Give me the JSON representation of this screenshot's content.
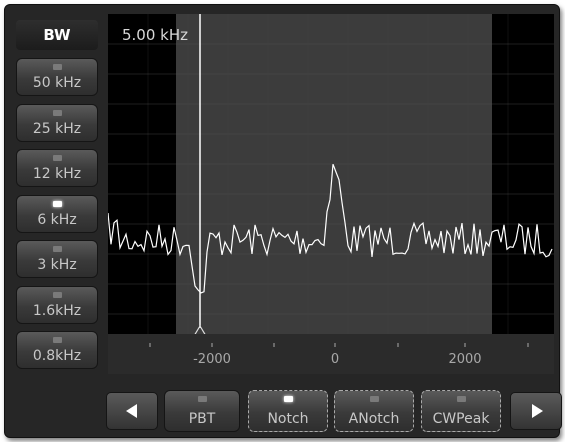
{
  "bw_panel": {
    "title": "BW",
    "buttons": [
      {
        "label": "50 kHz",
        "selected": false
      },
      {
        "label": "25 kHz",
        "selected": false
      },
      {
        "label": "12 kHz",
        "selected": false
      },
      {
        "label": "6 kHz",
        "selected": true
      },
      {
        "label": "3 kHz",
        "selected": false
      },
      {
        "label": "1.6kHz",
        "selected": false
      },
      {
        "label": "0.8kHz",
        "selected": false
      }
    ]
  },
  "display": {
    "bandwidth_label": "5.00 kHz",
    "axis_labels": [
      "-2000",
      "0",
      "2000"
    ]
  },
  "toolbar": {
    "buttons": [
      {
        "label": "PBT",
        "active": false
      },
      {
        "label": "Notch",
        "active": true
      },
      {
        "label": "ANotch",
        "active": false
      },
      {
        "label": "CWPeak",
        "active": false
      }
    ]
  }
}
